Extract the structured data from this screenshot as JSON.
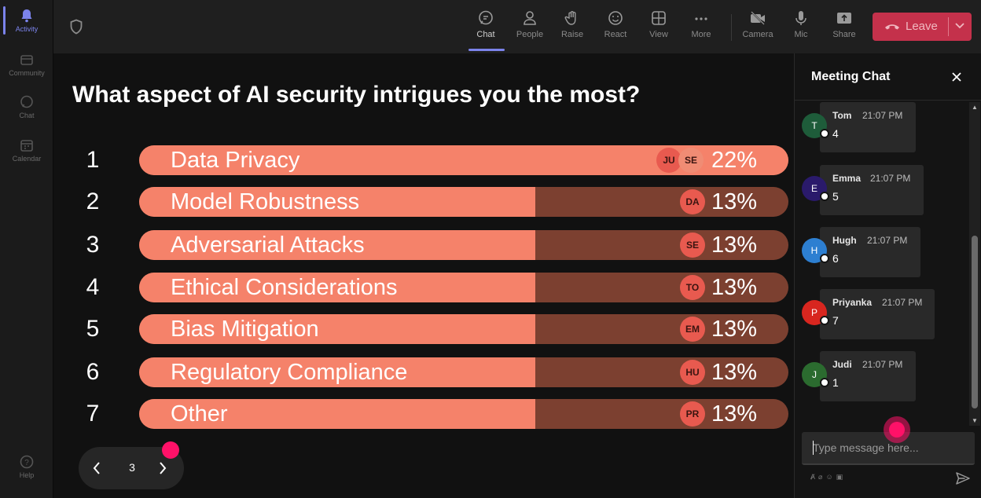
{
  "rail": {
    "items": [
      {
        "label": "Activity",
        "icon": "bell-icon"
      },
      {
        "label": "Community",
        "icon": "community-icon"
      },
      {
        "label": "Chat",
        "icon": "chat-icon"
      },
      {
        "label": "Calendar",
        "icon": "calendar-icon"
      }
    ],
    "help": {
      "label": "Help",
      "icon": "help-icon"
    }
  },
  "toolbar": {
    "buttons": [
      {
        "label": "Chat",
        "icon": "chat-icon"
      },
      {
        "label": "People",
        "icon": "people-icon"
      },
      {
        "label": "Raise",
        "icon": "raise-hand-icon"
      },
      {
        "label": "React",
        "icon": "smile-icon"
      },
      {
        "label": "View",
        "icon": "grid-icon"
      },
      {
        "label": "More",
        "icon": "more-icon"
      },
      {
        "label": "Camera",
        "icon": "camera-off-icon"
      },
      {
        "label": "Mic",
        "icon": "mic-icon"
      },
      {
        "label": "Share",
        "icon": "share-icon"
      }
    ],
    "leave_label": "Leave"
  },
  "poll": {
    "question": "What aspect of AI security intrigues you the most?",
    "options": [
      {
        "num": "1",
        "label": "Data Privacy",
        "percent": "22%",
        "fill": 1.0,
        "avatars": [
          "JU",
          "SE"
        ]
      },
      {
        "num": "2",
        "label": "Model Robustness",
        "percent": "13%",
        "fill": 0.61,
        "avatars": [
          "DA"
        ]
      },
      {
        "num": "3",
        "label": "Adversarial Attacks",
        "percent": "13%",
        "fill": 0.61,
        "avatars": [
          "SE"
        ]
      },
      {
        "num": "4",
        "label": "Ethical Considerations",
        "percent": "13%",
        "fill": 0.61,
        "avatars": [
          "TO"
        ]
      },
      {
        "num": "5",
        "label": "Bias Mitigation",
        "percent": "13%",
        "fill": 0.61,
        "avatars": [
          "EM"
        ]
      },
      {
        "num": "6",
        "label": "Regulatory Compliance",
        "percent": "13%",
        "fill": 0.61,
        "avatars": [
          "HU"
        ]
      },
      {
        "num": "7",
        "label": "Other",
        "percent": "13%",
        "fill": 0.61,
        "avatars": [
          "PR"
        ]
      }
    ],
    "page": "3"
  },
  "chat": {
    "title": "Meeting Chat",
    "messages": [
      {
        "initial": "T",
        "sender": "Tom",
        "time": "21:07 PM",
        "text": "4",
        "color": "#1e5c3a"
      },
      {
        "initial": "E",
        "sender": "Emma",
        "time": "21:07 PM",
        "text": "5",
        "color": "#2a1a6b"
      },
      {
        "initial": "H",
        "sender": "Hugh",
        "time": "21:07 PM",
        "text": "6",
        "color": "#2d7fd1"
      },
      {
        "initial": "P",
        "sender": "Priyanka",
        "time": "21:07 PM",
        "text": "7",
        "color": "#d8261f"
      },
      {
        "initial": "J",
        "sender": "Judi",
        "time": "21:07 PM",
        "text": "1",
        "color": "#2b6b2f"
      }
    ],
    "input_placeholder": "Type message here..."
  },
  "colors": {
    "bar_fill": "#f5826a",
    "bar_track": "#7c4030",
    "leave": "#c4314b",
    "accent": "#7b83eb",
    "cursor_dot": "#ff1168"
  }
}
